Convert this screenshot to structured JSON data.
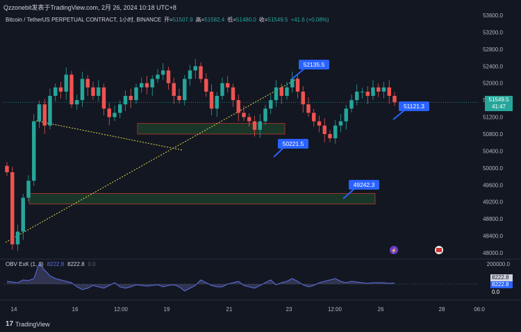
{
  "header": {
    "published_line": "Qzzonebit发表于TradingView.com, 2月 26, 2024 10:18 UTC+8"
  },
  "legend": {
    "symbol": "Bitcoin / TetherUS PERPETUAL CONTRACT, 1小时, BINANCE",
    "open_label": "开=",
    "open_value": "51507.9",
    "high_label": "高=",
    "high_value": "51582.4",
    "low_label": "低=",
    "low_value": "51480.0",
    "close_label": "收=",
    "close_value": "51549.5",
    "change": "+41.6 (+0.08%)"
  },
  "obv_legend": {
    "name": "OBV ExK (1, 3)",
    "value_blue": "8222.8",
    "value": "8222.8",
    "value_dim": "0.0"
  },
  "price_axis": {
    "ticks": [
      "53600.0",
      "53200.0",
      "52800.0",
      "52400.0",
      "52000.0",
      "51600.0",
      "51200.0",
      "50800.0",
      "50400.0",
      "50000.0",
      "49600.0",
      "49200.0",
      "48800.0",
      "48400.0",
      "48000.0"
    ],
    "current_price": "51549.5",
    "countdown": "41:47"
  },
  "obv_axis": {
    "ticks": [
      "200000.0"
    ],
    "tags": [
      "8222.8",
      "8222.8",
      "0.0"
    ]
  },
  "time_axis": {
    "labels": [
      "14",
      "16",
      "12:00",
      "19",
      "21",
      "23",
      "12:00",
      "26",
      "28",
      "06:0"
    ]
  },
  "annotations": [
    "52135.5",
    "50221.5",
    "51121.3",
    "49242.3"
  ],
  "footer": {
    "brand": "TradingView"
  },
  "colors": {
    "background": "#131722",
    "up": "#26a69a",
    "down": "#ef5350",
    "callout": "#2962ff",
    "trendline": "#e8e04a",
    "zone_fill": "#1b3a2a",
    "zone_border": "#c0392b"
  },
  "chart_data": [
    {
      "type": "candlestick",
      "title": "Bitcoin / TetherUS PERPETUAL CONTRACT, 1小时, BINANCE",
      "ylim": [
        47800,
        53800
      ],
      "x_labels": [
        "14",
        "16",
        "12:00",
        "19",
        "21",
        "23",
        "12:00",
        "26",
        "28",
        "06:0"
      ],
      "series": [
        {
          "values": [
            49900,
            48200,
            48500,
            49300,
            49700,
            51100,
            51500,
            51000,
            51700,
            51900,
            51800,
            52200,
            51500,
            51600,
            52100,
            51900,
            51700,
            51900,
            51400,
            51200,
            51300,
            51500,
            51700,
            51600,
            51900,
            52000,
            51900,
            52100,
            52200,
            52300,
            52000,
            51700,
            51600,
            52100,
            52300,
            52400,
            52100,
            51800,
            51400,
            51700,
            52000,
            51900,
            51600,
            51300,
            51200,
            51100,
            50900,
            51100,
            51400,
            51600,
            51900,
            51700,
            51900,
            52100,
            51800,
            51500,
            51300,
            51100,
            51000,
            50800,
            50700,
            51000,
            51100,
            51400,
            51600,
            51800,
            51800,
            51700,
            51900,
            51800,
            51900,
            51700,
            51550
          ]
        }
      ],
      "annotations": [
        {
          "label": "52135.5",
          "value": 52135.5
        },
        {
          "label": "50221.5",
          "value": 50221.5
        },
        {
          "label": "51121.3",
          "value": 51121.3
        },
        {
          "label": "49242.3",
          "value": 49242.3
        }
      ],
      "zones": [
        {
          "low": 50800,
          "high": 51050
        },
        {
          "low": 49150,
          "high": 49400
        }
      ]
    },
    {
      "type": "area",
      "title": "OBV ExK (1, 3)",
      "series": [
        {
          "values": [
            20000,
            15000,
            10000,
            30000,
            25000,
            40000,
            150000,
            100000,
            60000,
            40000,
            30000,
            20000,
            10000,
            -20000,
            -40000,
            -30000,
            -10000,
            -20000,
            -30000,
            -10000,
            10000,
            -20000,
            -30000,
            -20000,
            -5000,
            -10000,
            -15000,
            -10000,
            -5000,
            -20000,
            -10000,
            -5000,
            -20000,
            -50000,
            -30000,
            -10000,
            30000,
            10000,
            -10000,
            -20000,
            -20000,
            0,
            10000,
            20000,
            -10000,
            -20000,
            -30000,
            -10000,
            10000,
            30000,
            -5000,
            10000,
            20000,
            40000,
            20000,
            -5000,
            -20000,
            -10000,
            10000,
            20000,
            30000,
            40000,
            20000,
            10000,
            20000,
            15000,
            10000,
            5000,
            10000,
            10000,
            10000,
            5000,
            8222.8
          ]
        }
      ]
    }
  ]
}
